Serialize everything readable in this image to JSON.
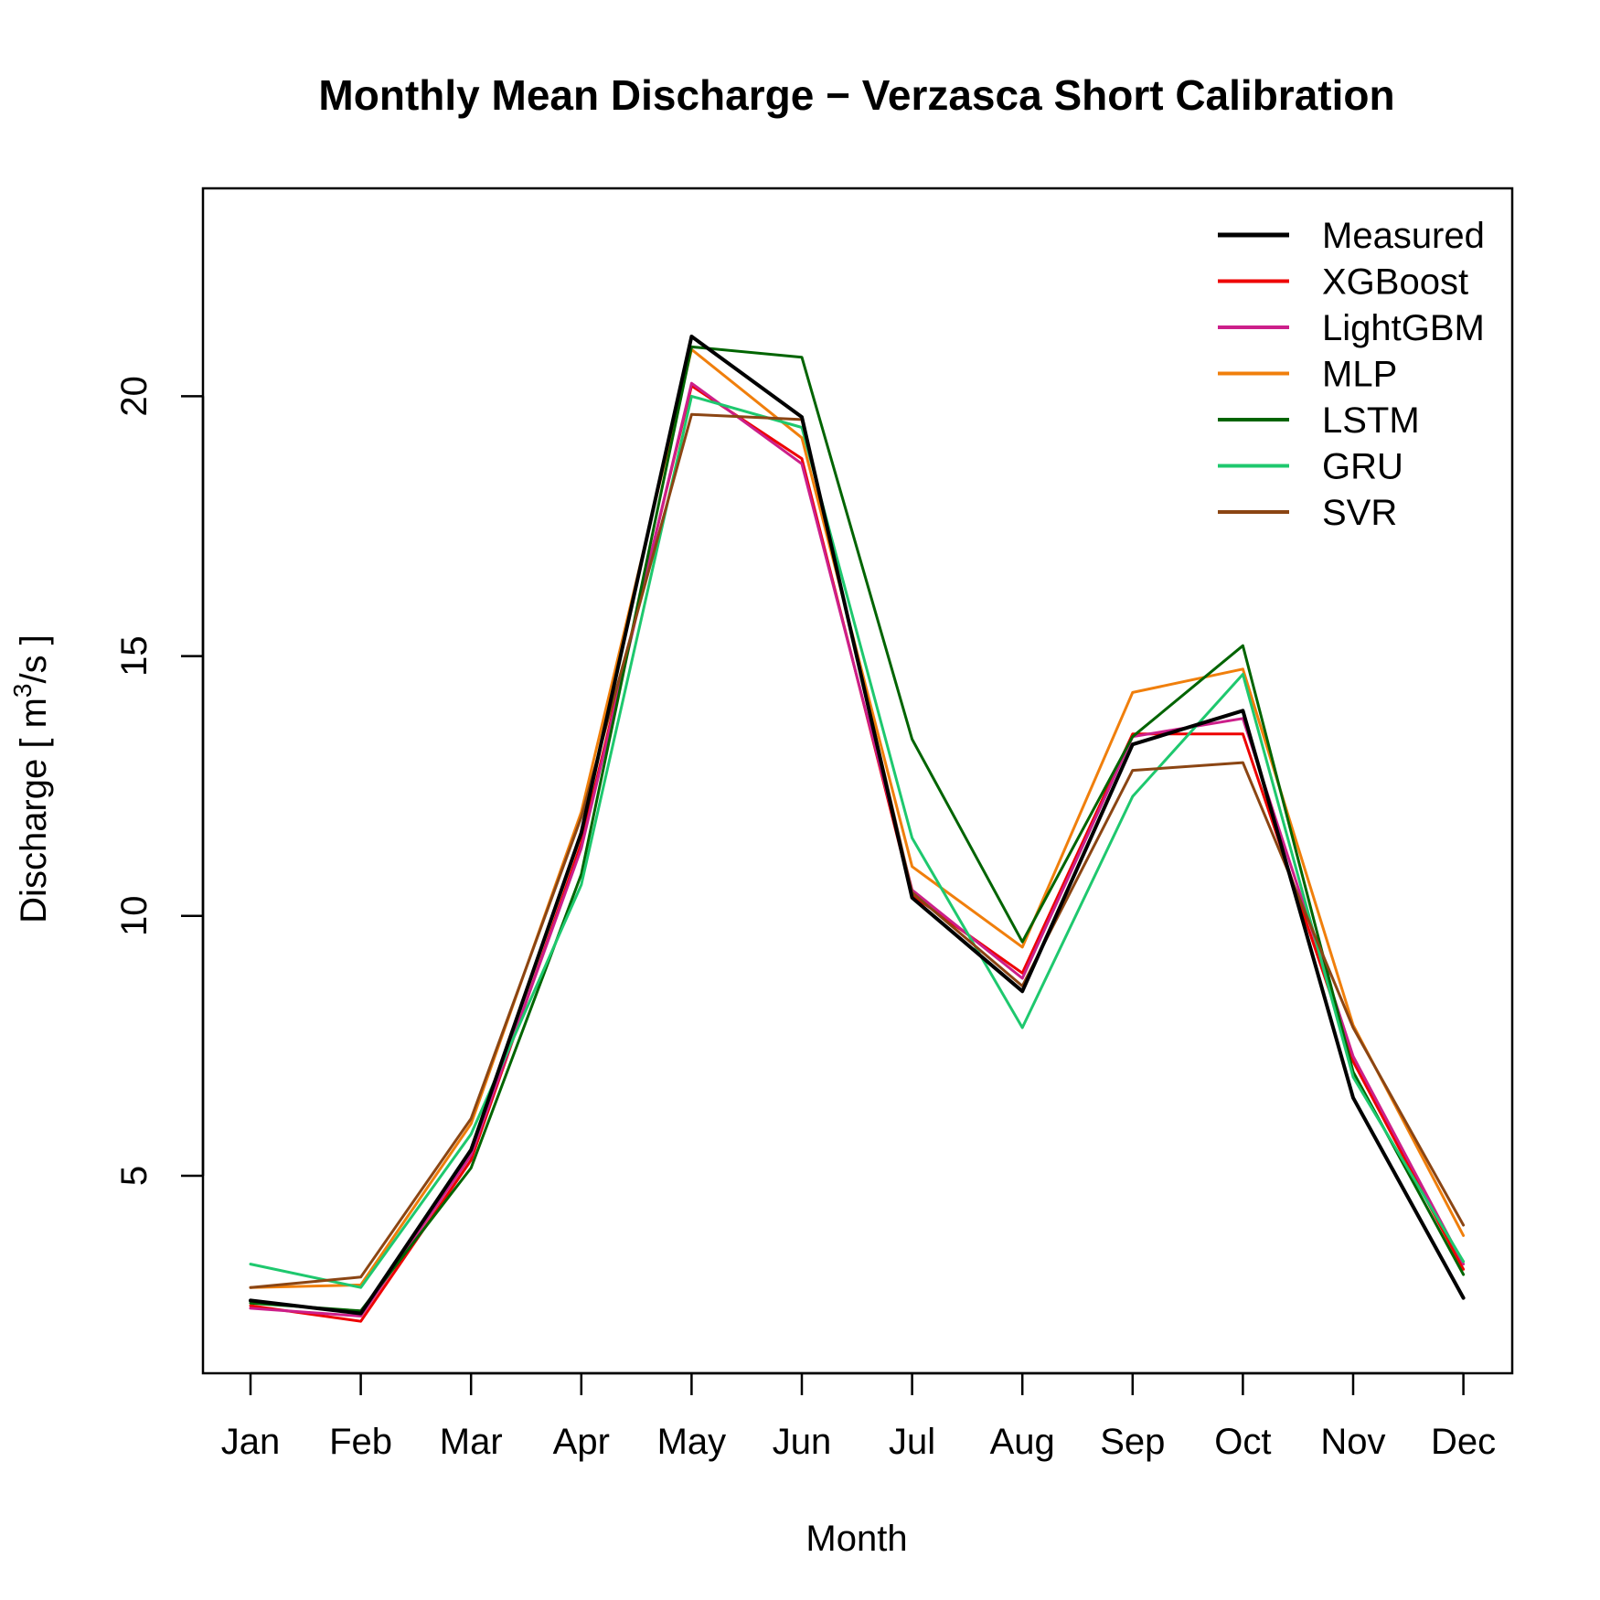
{
  "chart_data": {
    "type": "line",
    "title": "Monthly Mean Discharge − Verzasca Short Calibration",
    "xlabel": "Month",
    "ylabel_prefix": "Discharge [ m",
    "ylabel_sup": "3",
    "ylabel_suffix": "/s ]",
    "categories": [
      "Jan",
      "Feb",
      "Mar",
      "Apr",
      "May",
      "Jun",
      "Jul",
      "Aug",
      "Sep",
      "Oct",
      "Nov",
      "Dec"
    ],
    "y_ticks": [
      5,
      10,
      15,
      20
    ],
    "ylim": [
      1.2,
      24.0
    ],
    "legend_position": "top-right",
    "grid": false,
    "series": [
      {
        "name": "Measured",
        "color": "#000000",
        "width": 4,
        "values": [
          2.6,
          2.35,
          5.5,
          11.6,
          21.15,
          19.6,
          10.35,
          8.55,
          13.3,
          13.95,
          6.5,
          2.65
        ]
      },
      {
        "name": "XGBoost",
        "color": "#ee0000",
        "width": 3,
        "values": [
          2.5,
          2.2,
          5.3,
          11.4,
          20.2,
          18.8,
          10.4,
          8.9,
          13.5,
          13.5,
          7.2,
          3.2
        ]
      },
      {
        "name": "LightGBM",
        "color": "#cc1f8a",
        "width": 3,
        "values": [
          2.45,
          2.3,
          5.4,
          11.3,
          20.25,
          18.7,
          10.5,
          8.8,
          13.45,
          13.8,
          7.3,
          3.3
        ]
      },
      {
        "name": "MLP",
        "color": "#f07f0c",
        "width": 3,
        "values": [
          2.85,
          2.9,
          6.0,
          12.0,
          20.9,
          19.2,
          10.95,
          9.4,
          14.3,
          14.75,
          7.9,
          3.85
        ]
      },
      {
        "name": "LSTM",
        "color": "#006400",
        "width": 3,
        "values": [
          2.55,
          2.4,
          5.15,
          10.8,
          20.95,
          20.75,
          13.4,
          9.5,
          13.45,
          15.2,
          7.0,
          3.1
        ]
      },
      {
        "name": "GRU",
        "color": "#1ec86e",
        "width": 3,
        "values": [
          3.3,
          2.85,
          5.8,
          10.6,
          20.0,
          19.4,
          11.5,
          7.85,
          12.3,
          14.65,
          6.9,
          3.35
        ]
      },
      {
        "name": "SVR",
        "color": "#8b4513",
        "width": 3,
        "values": [
          2.85,
          3.05,
          6.1,
          11.9,
          19.65,
          19.55,
          10.45,
          8.65,
          12.8,
          12.95,
          7.85,
          4.05
        ]
      }
    ]
  }
}
